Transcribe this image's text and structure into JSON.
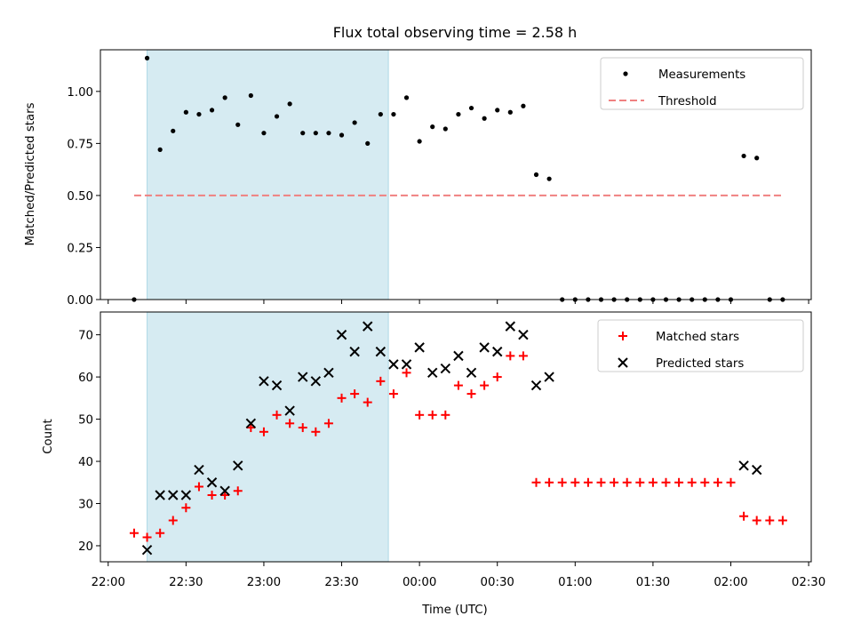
{
  "chart_data": [
    {
      "type": "scatter",
      "title": "Flux total observing time = 2.58 h",
      "ylabel": "Matched/Predicted stars",
      "xlabel": "",
      "x_axis": "time",
      "ylim": [
        0,
        1.2
      ],
      "yticks": [
        "0.00",
        "0.25",
        "0.50",
        "0.75",
        "1.00"
      ],
      "shaded_interval": [
        "22:15",
        "23:48"
      ],
      "shaded_color": "#add8e6",
      "legend": "upper right",
      "series": [
        {
          "name": "Measurements",
          "marker": "dot",
          "color": "#000000",
          "points": [
            [
              "22:10",
              0.0
            ],
            [
              "22:15",
              1.16
            ],
            [
              "22:20",
              0.72
            ],
            [
              "22:25",
              0.81
            ],
            [
              "22:30",
              0.9
            ],
            [
              "22:35",
              0.89
            ],
            [
              "22:40",
              0.91
            ],
            [
              "22:45",
              0.97
            ],
            [
              "22:50",
              0.84
            ],
            [
              "22:55",
              0.98
            ],
            [
              "23:00",
              0.8
            ],
            [
              "23:05",
              0.88
            ],
            [
              "23:10",
              0.94
            ],
            [
              "23:15",
              0.8
            ],
            [
              "23:20",
              0.8
            ],
            [
              "23:25",
              0.8
            ],
            [
              "23:30",
              0.79
            ],
            [
              "23:35",
              0.85
            ],
            [
              "23:40",
              0.75
            ],
            [
              "23:45",
              0.89
            ],
            [
              "23:50",
              0.89
            ],
            [
              "23:55",
              0.97
            ],
            [
              "00:00",
              0.76
            ],
            [
              "00:05",
              0.83
            ],
            [
              "00:10",
              0.82
            ],
            [
              "00:15",
              0.89
            ],
            [
              "00:20",
              0.92
            ],
            [
              "00:25",
              0.87
            ],
            [
              "00:30",
              0.91
            ],
            [
              "00:35",
              0.9
            ],
            [
              "00:40",
              0.93
            ],
            [
              "00:45",
              0.6
            ],
            [
              "00:50",
              0.58
            ],
            [
              "00:55",
              0.0
            ],
            [
              "01:00",
              0.0
            ],
            [
              "01:05",
              0.0
            ],
            [
              "01:10",
              0.0
            ],
            [
              "01:15",
              0.0
            ],
            [
              "01:20",
              0.0
            ],
            [
              "01:25",
              0.0
            ],
            [
              "01:30",
              0.0
            ],
            [
              "01:35",
              0.0
            ],
            [
              "01:40",
              0.0
            ],
            [
              "01:45",
              0.0
            ],
            [
              "01:50",
              0.0
            ],
            [
              "01:55",
              0.0
            ],
            [
              "02:00",
              0.0
            ],
            [
              "02:05",
              0.69
            ],
            [
              "02:10",
              0.68
            ],
            [
              "02:15",
              0.0
            ],
            [
              "02:20",
              0.0
            ]
          ]
        },
        {
          "name": "Threshold",
          "marker": "dashed-line",
          "color": "#f08080",
          "points": [
            [
              "22:10",
              0.5
            ],
            [
              "02:20",
              0.5
            ]
          ]
        }
      ]
    },
    {
      "type": "scatter",
      "title": "",
      "ylabel": "Count",
      "xlabel": "Time (UTC)",
      "x_axis": "time",
      "xlim": [
        "21:57",
        "02:31"
      ],
      "xticks": [
        "22:00",
        "22:30",
        "23:00",
        "23:30",
        "00:00",
        "00:30",
        "01:00",
        "01:30",
        "02:00",
        "02:30"
      ],
      "ylim": [
        16.2,
        75.4
      ],
      "yticks": [
        "20",
        "30",
        "40",
        "50",
        "60",
        "70"
      ],
      "shaded_interval": [
        "22:15",
        "23:48"
      ],
      "shaded_color": "#add8e6",
      "legend": "upper right",
      "series": [
        {
          "name": "Matched stars",
          "marker": "plus",
          "color": "#ff0000",
          "points": [
            [
              "22:10",
              23
            ],
            [
              "22:15",
              22
            ],
            [
              "22:20",
              23
            ],
            [
              "22:25",
              26
            ],
            [
              "22:30",
              29
            ],
            [
              "22:35",
              34
            ],
            [
              "22:40",
              32
            ],
            [
              "22:45",
              32
            ],
            [
              "22:50",
              33
            ],
            [
              "22:55",
              48
            ],
            [
              "23:00",
              47
            ],
            [
              "23:05",
              51
            ],
            [
              "23:10",
              49
            ],
            [
              "23:15",
              48
            ],
            [
              "23:20",
              47
            ],
            [
              "23:25",
              49
            ],
            [
              "23:30",
              55
            ],
            [
              "23:35",
              56
            ],
            [
              "23:40",
              54
            ],
            [
              "23:45",
              59
            ],
            [
              "23:50",
              56
            ],
            [
              "23:55",
              61
            ],
            [
              "00:00",
              51
            ],
            [
              "00:05",
              51
            ],
            [
              "00:10",
              51
            ],
            [
              "00:15",
              58
            ],
            [
              "00:20",
              56
            ],
            [
              "00:25",
              58
            ],
            [
              "00:30",
              60
            ],
            [
              "00:35",
              65
            ],
            [
              "00:40",
              65
            ],
            [
              "00:45",
              35
            ],
            [
              "00:50",
              35
            ],
            [
              "00:55",
              35
            ],
            [
              "01:00",
              35
            ],
            [
              "01:05",
              35
            ],
            [
              "01:10",
              35
            ],
            [
              "01:15",
              35
            ],
            [
              "01:20",
              35
            ],
            [
              "01:25",
              35
            ],
            [
              "01:30",
              35
            ],
            [
              "01:35",
              35
            ],
            [
              "01:40",
              35
            ],
            [
              "01:45",
              35
            ],
            [
              "01:50",
              35
            ],
            [
              "01:55",
              35
            ],
            [
              "02:00",
              35
            ],
            [
              "02:05",
              27
            ],
            [
              "02:10",
              26
            ],
            [
              "02:15",
              26
            ],
            [
              "02:20",
              26
            ]
          ]
        },
        {
          "name": "Predicted stars",
          "marker": "x",
          "color": "#000000",
          "points": [
            [
              "22:15",
              19
            ],
            [
              "22:20",
              32
            ],
            [
              "22:25",
              32
            ],
            [
              "22:30",
              32
            ],
            [
              "22:35",
              38
            ],
            [
              "22:40",
              35
            ],
            [
              "22:45",
              33
            ],
            [
              "22:50",
              39
            ],
            [
              "22:55",
              49
            ],
            [
              "23:00",
              59
            ],
            [
              "23:05",
              58
            ],
            [
              "23:10",
              52
            ],
            [
              "23:15",
              60
            ],
            [
              "23:20",
              59
            ],
            [
              "23:25",
              61
            ],
            [
              "23:30",
              70
            ],
            [
              "23:35",
              66
            ],
            [
              "23:40",
              72
            ],
            [
              "23:45",
              66
            ],
            [
              "23:50",
              63
            ],
            [
              "23:55",
              63
            ],
            [
              "00:00",
              67
            ],
            [
              "00:05",
              61
            ],
            [
              "00:10",
              62
            ],
            [
              "00:15",
              65
            ],
            [
              "00:20",
              61
            ],
            [
              "00:25",
              67
            ],
            [
              "00:30",
              66
            ],
            [
              "00:35",
              72
            ],
            [
              "00:40",
              70
            ],
            [
              "00:45",
              58
            ],
            [
              "00:50",
              60
            ],
            [
              "02:05",
              39
            ],
            [
              "02:10",
              38
            ]
          ]
        }
      ]
    }
  ]
}
